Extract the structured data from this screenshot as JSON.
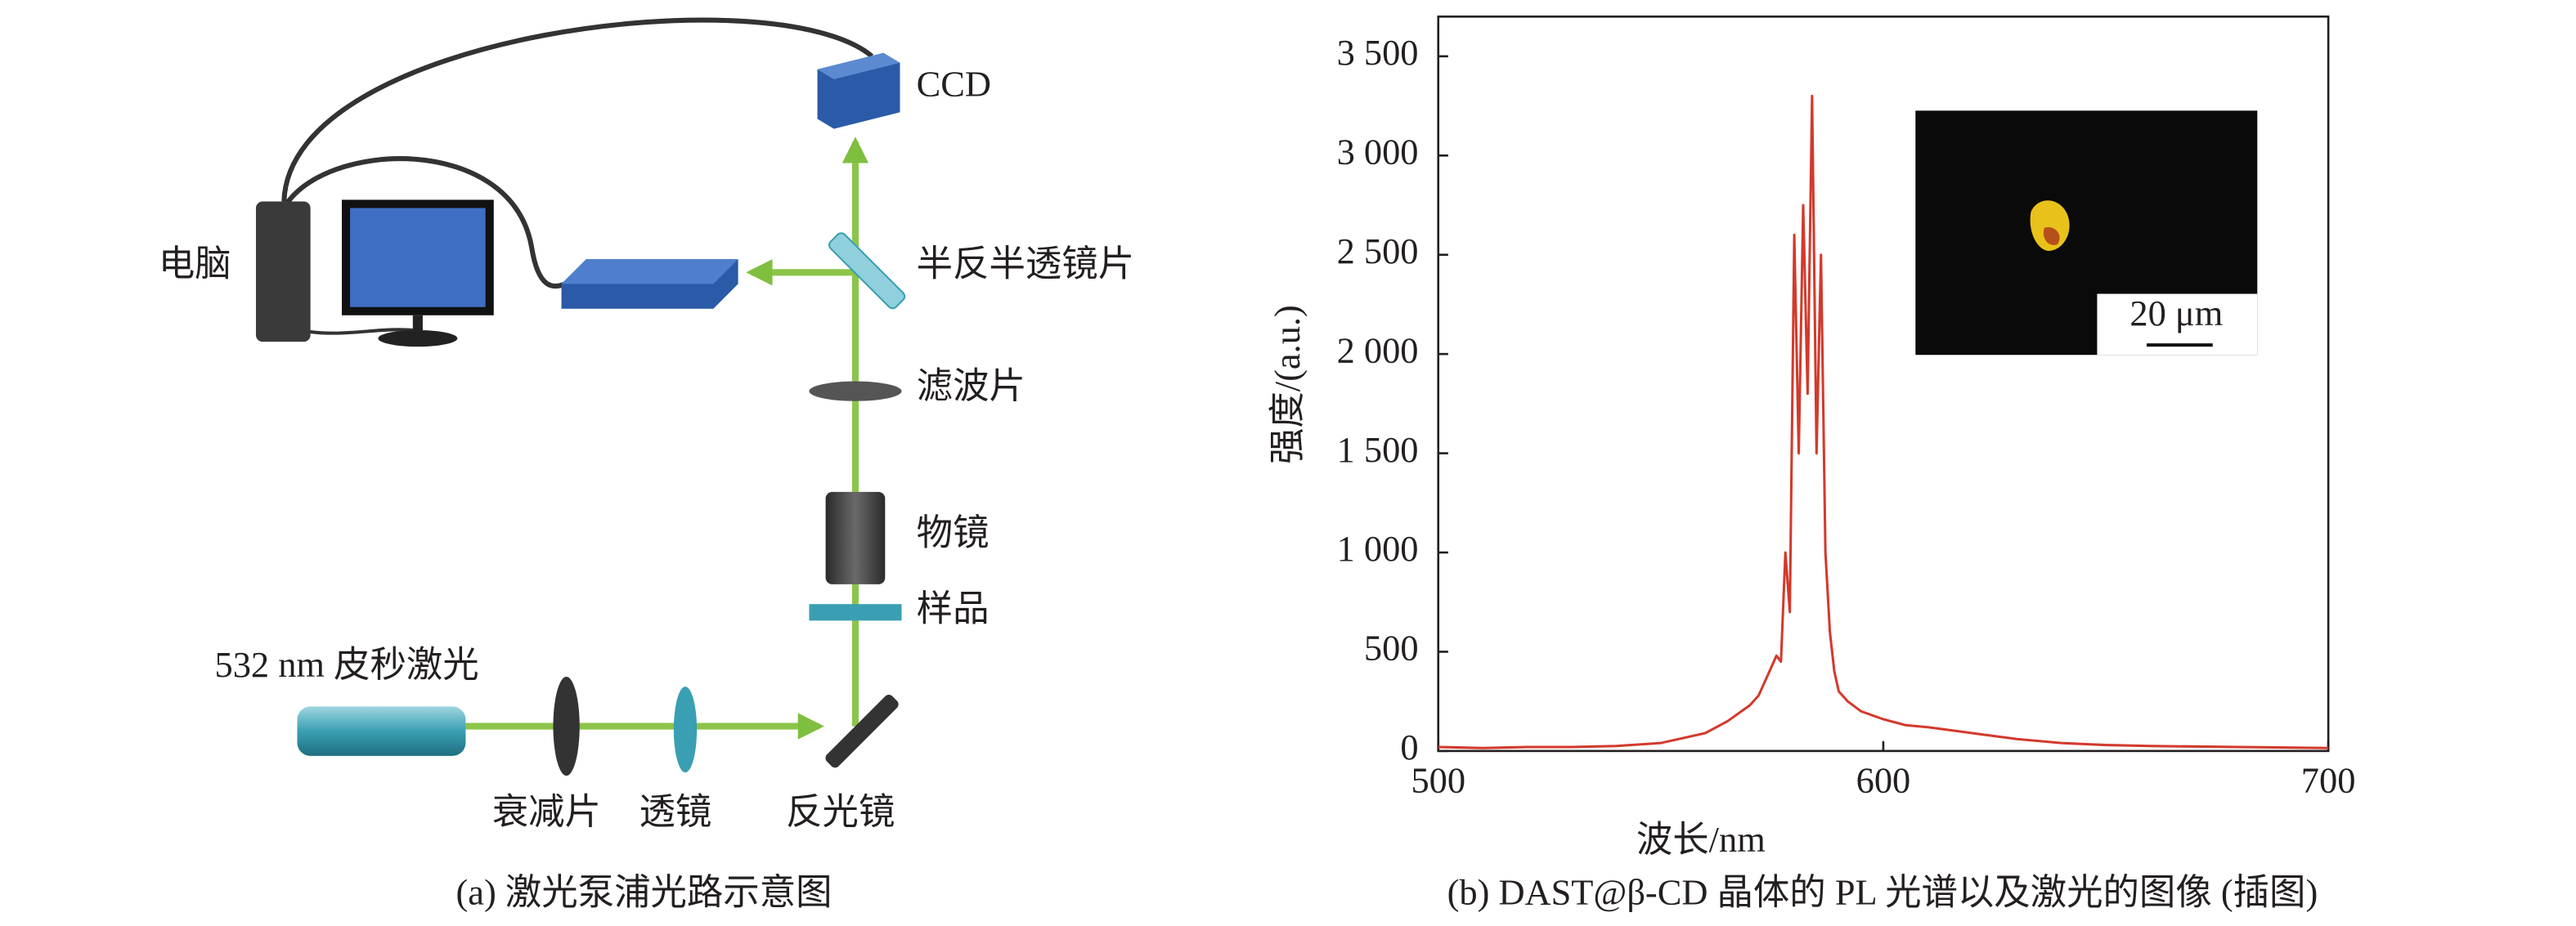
{
  "diagram": {
    "labels": {
      "ccd": "CCD",
      "computer": "电脑",
      "beam_splitter": "半反半透镜片",
      "filter": "滤波片",
      "objective": "物镜",
      "sample": "样品",
      "laser": "532 nm 皮秒激光",
      "attenuator": "衰减片",
      "lens": "透镜",
      "mirror": "反光镜"
    },
    "caption": "(a) 激光泵浦光路示意图"
  },
  "chart_data": {
    "type": "line",
    "caption": "(b) DAST@β-CD 晶体的 PL 光谱以及激光的图像 (插图)",
    "x_label": "波长/nm",
    "y_label": "强度/(a.u.)",
    "inset_label": "20 μm",
    "color": "#d23a2c",
    "x": [
      500,
      510,
      520,
      530,
      540,
      550,
      560,
      565,
      570,
      572,
      574,
      576,
      577,
      578,
      579,
      580,
      581,
      582,
      583,
      584,
      585,
      586,
      587,
      588,
      589,
      590,
      592,
      595,
      600,
      605,
      610,
      620,
      630,
      640,
      650,
      660,
      680,
      700
    ],
    "values": [
      20,
      15,
      20,
      20,
      25,
      40,
      90,
      150,
      230,
      280,
      380,
      480,
      450,
      1000,
      700,
      2600,
      1500,
      2750,
      1800,
      3300,
      1500,
      2500,
      1000,
      600,
      400,
      300,
      250,
      200,
      160,
      130,
      120,
      90,
      60,
      40,
      30,
      25,
      20,
      15
    ],
    "xlim": [
      500,
      700
    ],
    "xticks": [
      500,
      600,
      700
    ],
    "ylim": [
      0,
      3700
    ],
    "yticks": [
      0,
      500,
      {
        "value": 1000,
        "label": "1 000"
      },
      {
        "value": 1500,
        "label": "1 500"
      },
      {
        "value": 2000,
        "label": "2 000"
      },
      {
        "value": 2500,
        "label": "2 500"
      },
      {
        "value": 3000,
        "label": "3 000"
      },
      {
        "value": 3500,
        "label": "3 500"
      }
    ]
  }
}
